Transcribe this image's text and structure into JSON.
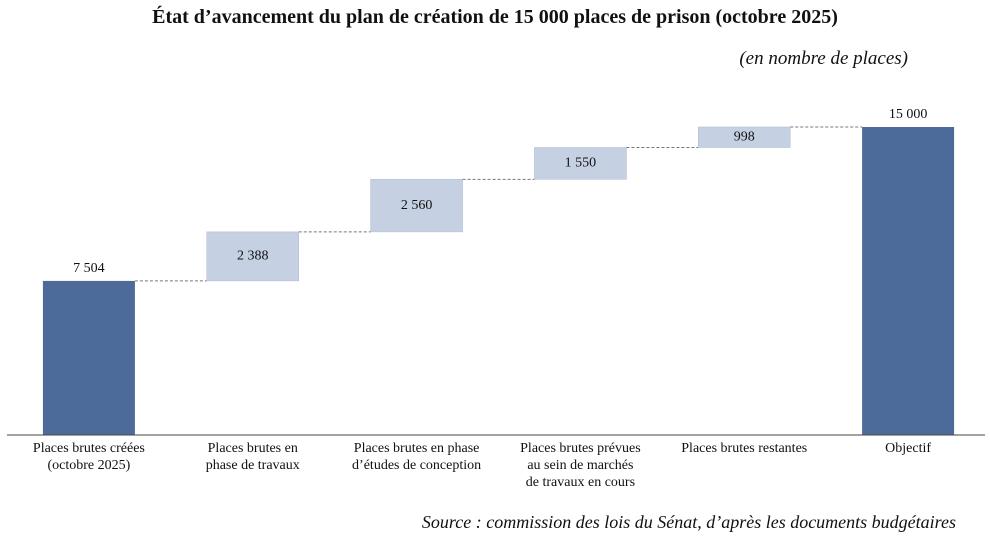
{
  "chart_data": {
    "type": "waterfall",
    "title": "État d’avancement du plan de création de 15 000 places de prison (octobre 2025)",
    "subtitle": "(en nombre de places)",
    "source": "Source : commission des lois du Sénat, d’après les documents budgétaires",
    "categories": [
      "Places brutes créées\n(octobre 2025)",
      "Places brutes en\nphase de travaux",
      "Places brutes en phase\nd’études de conception",
      "Places brutes prévues\nau sein de marchés\nde travaux en cours",
      "Places brutes restantes",
      "Objectif"
    ],
    "values": [
      7504,
      2388,
      2560,
      1550,
      998,
      15000
    ],
    "value_labels": [
      "7 504",
      "2 388",
      "2 560",
      "1 550",
      "998",
      "15 000"
    ],
    "total_color": "#4d6b9a",
    "color": "#c5d0e2",
    "ylim": [
      0,
      15000
    ]
  }
}
